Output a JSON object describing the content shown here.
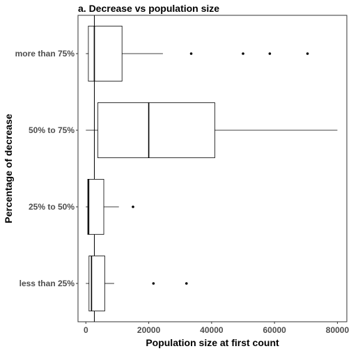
{
  "chart_data": {
    "type": "boxplot",
    "title": "a. Decrease vs population size",
    "xlabel": "Population size at first count",
    "ylabel": "Percentage of decrease",
    "xlim": [
      -2500,
      83000
    ],
    "x_ticks": [
      0,
      20000,
      40000,
      60000,
      80000
    ],
    "x_tick_labels": [
      "0",
      "20000",
      "40000",
      "60000",
      "80000"
    ],
    "orientation": "horizontal",
    "reference_line_x": 2700,
    "grid": false,
    "categories": [
      "more than 75%",
      "50% to 75%",
      "25% to 50%",
      "less than 25%"
    ],
    "boxes": [
      {
        "category": "more than 75%",
        "whisker_low": 0,
        "q1": 800,
        "median": 2700,
        "q3": 11500,
        "whisker_high": 24500,
        "outliers": [
          33500,
          50000,
          58500,
          70500
        ]
      },
      {
        "category": "50% to 75%",
        "whisker_low": 0,
        "q1": 3800,
        "median": 20000,
        "q3": 41000,
        "whisker_high": 80000,
        "outliers": []
      },
      {
        "category": "25% to 50%",
        "whisker_low": 0,
        "q1": 600,
        "median": 900,
        "q3": 5700,
        "whisker_high": 10500,
        "outliers": [
          15000
        ]
      },
      {
        "category": "less than 25%",
        "whisker_low": 0,
        "q1": 1000,
        "median": 1800,
        "q3": 6000,
        "whisker_high": 9000,
        "outliers": [
          21500,
          32000
        ]
      }
    ]
  }
}
